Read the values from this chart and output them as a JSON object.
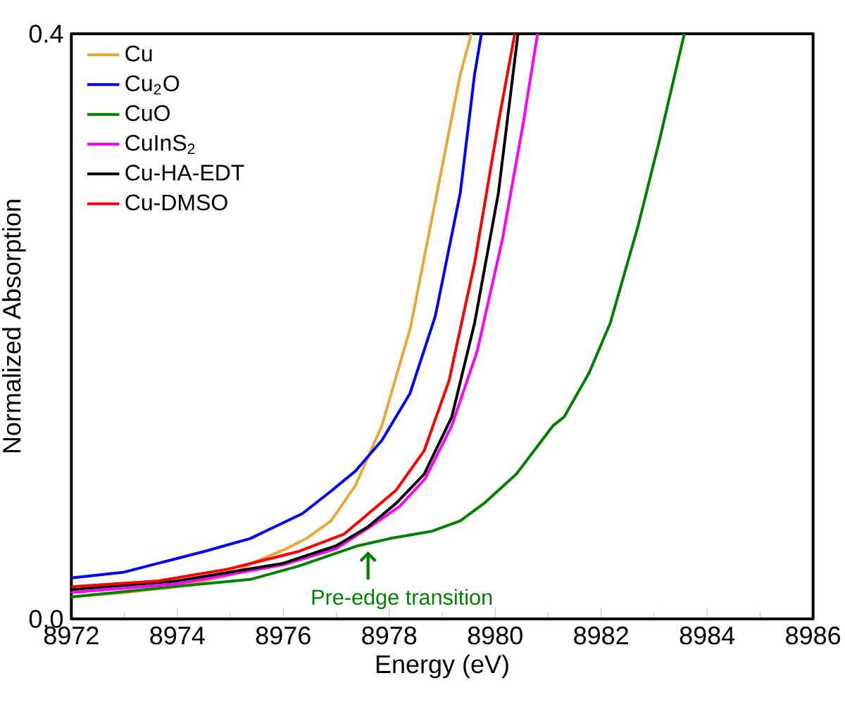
{
  "chart_data": {
    "type": "line",
    "xlabel": "Energy (eV)",
    "ylabel": "Normalized Absorption",
    "xlim": [
      8972,
      8986
    ],
    "xticks": [
      8972,
      8974,
      8976,
      8978,
      8980,
      8982,
      8984,
      8986
    ],
    "ylim": [
      0,
      0.4
    ],
    "yticks": [
      {
        "value": 0,
        "label": "0.0"
      },
      0.4
    ],
    "legend": "top left",
    "grid": false,
    "marker": "none",
    "annotations": [
      {
        "text": "Pre-edge transition",
        "x": 8977.6,
        "y": 0.05
      }
    ],
    "series": [
      {
        "name": "Cu",
        "color": "#e8a838",
        "x": [
          8972,
          8973,
          8974,
          8975,
          8975.4,
          8976,
          8976.44,
          8976.9,
          8977.36,
          8977.86,
          8978.4,
          8978.9,
          8979.34,
          8979.55
        ],
        "values": [
          0.015,
          0.018,
          0.022,
          0.03,
          0.038,
          0.047,
          0.055,
          0.067,
          0.091,
          0.132,
          0.199,
          0.291,
          0.372,
          0.4
        ]
      },
      {
        "name": "Cu$_{2}$O",
        "color": "#0000ff",
        "x": [
          8972,
          8973,
          8973.64,
          8974.5,
          8975.38,
          8976.36,
          8976.89,
          8977.36,
          8977.86,
          8978.39,
          8978.87,
          8979.34,
          8979.61,
          8979.74
        ],
        "values": [
          0.028,
          0.032,
          0.038,
          0.046,
          0.055,
          0.072,
          0.087,
          0.101,
          0.122,
          0.154,
          0.207,
          0.291,
          0.372,
          0.4
        ]
      },
      {
        "name": "CuO",
        "color": "#008000",
        "x": [
          8972,
          8973.64,
          8975.38,
          8976.28,
          8977.41,
          8978.02,
          8978.81,
          8979.34,
          8979.79,
          8980.4,
          8981.09,
          8981.3,
          8981.77,
          8982.17,
          8982.7,
          8983.1,
          8983.57
        ],
        "values": [
          0.015,
          0.021,
          0.027,
          0.036,
          0.05,
          0.055,
          0.06,
          0.067,
          0.079,
          0.099,
          0.132,
          0.138,
          0.168,
          0.202,
          0.269,
          0.327,
          0.4
        ]
      },
      {
        "name": "CuInS$_{2}$",
        "color": "#ff00ff",
        "x": [
          8972,
          8974,
          8976,
          8977,
          8977.6,
          8978.2,
          8978.68,
          8979.18,
          8979.66,
          8980.14,
          8980.53,
          8980.8
        ],
        "values": [
          0.018,
          0.024,
          0.037,
          0.048,
          0.062,
          0.077,
          0.096,
          0.132,
          0.183,
          0.26,
          0.339,
          0.4
        ]
      },
      {
        "name": "Cu-HA-EDT",
        "color": "#000000",
        "x": [
          8972,
          8974,
          8976,
          8977,
          8977.6,
          8978.13,
          8978.66,
          8979.18,
          8979.61,
          8980.06,
          8980.43
        ],
        "values": [
          0.02,
          0.026,
          0.038,
          0.05,
          0.063,
          0.079,
          0.099,
          0.138,
          0.202,
          0.291,
          0.4
        ]
      },
      {
        "name": "Cu-DMSO",
        "color": "#ff0000",
        "x": [
          8972,
          8973.64,
          8974.96,
          8976.28,
          8977.15,
          8978.13,
          8978.66,
          8979.13,
          8979.61,
          8980.06,
          8980.37
        ],
        "values": [
          0.022,
          0.026,
          0.034,
          0.046,
          0.058,
          0.088,
          0.115,
          0.163,
          0.243,
          0.339,
          0.4
        ]
      }
    ]
  }
}
